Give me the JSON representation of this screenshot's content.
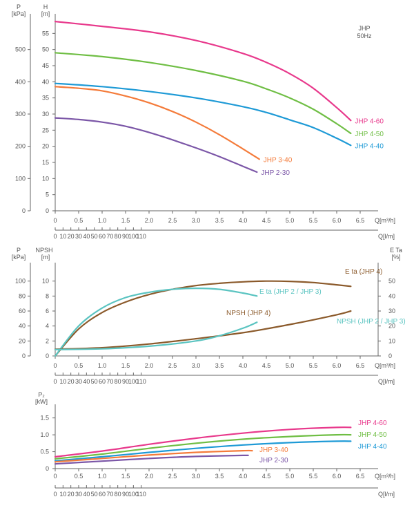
{
  "chart_data": [
    {
      "type": "line",
      "annotation": "JHP\n50Hz",
      "y_left": {
        "label": "P\n[kPa]",
        "ticks": [
          "0",
          "100",
          "200",
          "300",
          "400",
          "500"
        ],
        "range": [
          0,
          600
        ]
      },
      "y_right": {
        "label": "H\n[m]",
        "ticks": [
          "0",
          "5",
          "10",
          "15",
          "20",
          "25",
          "30",
          "35",
          "40",
          "45",
          "50",
          "55"
        ],
        "range": [
          0,
          60
        ]
      },
      "x_top": {
        "label": "Q[m³/h]",
        "ticks": [
          "0",
          "0.5",
          "1.0",
          "1.5",
          "2.0",
          "2.5",
          "3.0",
          "3.5",
          "4.0",
          "4.5",
          "5.0",
          "5.5",
          "6.0",
          "6.5"
        ],
        "range": [
          0,
          6.8
        ]
      },
      "x_bottom": {
        "label": "Q[l/m]",
        "ticks": [
          "0",
          "10",
          "20",
          "30",
          "40",
          "50",
          "60",
          "70",
          "80",
          "90",
          "100",
          "110"
        ]
      },
      "grid": false,
      "series": [
        {
          "name": "JHP 4-60",
          "color": "#e8398c",
          "x": [
            0,
            1,
            2,
            3,
            4,
            4.5,
            5,
            5.5,
            6,
            6.3
          ],
          "y": [
            58.7,
            57.2,
            55.5,
            52.8,
            48.8,
            46,
            42.5,
            38,
            32,
            28
          ]
        },
        {
          "name": "JHP 4-50",
          "color": "#6fbe44",
          "x": [
            0,
            1,
            2,
            3,
            4,
            4.5,
            5,
            5.5,
            6,
            6.3
          ],
          "y": [
            49,
            47.8,
            46,
            43.5,
            40.2,
            37.8,
            35,
            31.5,
            27,
            24
          ]
        },
        {
          "name": "JHP 4-40",
          "color": "#1e9ad6",
          "x": [
            0,
            1,
            2,
            3,
            4,
            4.5,
            5,
            5.5,
            6,
            6.3
          ],
          "y": [
            39.5,
            38.5,
            37,
            35,
            32.3,
            30.5,
            28.2,
            25.8,
            22.5,
            20.3
          ]
        },
        {
          "name": "JHP 3-40",
          "color": "#f47b3a",
          "x": [
            0,
            0.5,
            1,
            1.5,
            2,
            2.5,
            3,
            3.5,
            4,
            4.35
          ],
          "y": [
            38.5,
            38,
            37.2,
            35.6,
            33.5,
            30.8,
            27.5,
            23.6,
            19.2,
            16
          ]
        },
        {
          "name": "JHP 2-30",
          "color": "#7b56a7",
          "x": [
            0,
            0.5,
            1,
            1.5,
            2,
            2.5,
            3,
            3.5,
            4,
            4.3
          ],
          "y": [
            28.8,
            28.3,
            27.5,
            26.2,
            24.3,
            22,
            19.5,
            16.8,
            13.8,
            12
          ]
        }
      ]
    },
    {
      "type": "line",
      "y_left": {
        "label": "P  NPSH\n[kPa]  [m]",
        "ticks_kpa": [
          "0",
          "20",
          "40",
          "60",
          "80",
          "100"
        ],
        "ticks_m": [
          "0",
          "2",
          "4",
          "6",
          "8",
          "10"
        ],
        "range": [
          0,
          12
        ]
      },
      "y_right": {
        "label": "E Ta\n[%]",
        "ticks": [
          "0",
          "10",
          "20",
          "30",
          "40",
          "50"
        ],
        "range": [
          0,
          60
        ]
      },
      "x_top": {
        "label": "Q[m³/h]",
        "ticks": [
          "0",
          "0.5",
          "1.0",
          "1.5",
          "2.0",
          "2.5",
          "3.0",
          "3.5",
          "4.0",
          "4.5",
          "5.0",
          "5.5",
          "6.0",
          "6.5"
        ],
        "range": [
          0,
          6.8
        ]
      },
      "x_bottom": {
        "label": "Q[l/m]",
        "ticks": [
          "0",
          "10",
          "20",
          "30",
          "40",
          "50",
          "60",
          "70",
          "80",
          "90",
          "100",
          "110"
        ]
      },
      "grid": false,
      "series": [
        {
          "name": "E ta (JHP 4)",
          "axis": "right",
          "color": "#8b5a2b",
          "x": [
            0,
            0.5,
            1,
            1.5,
            2,
            2.5,
            3,
            3.5,
            4,
            4.5,
            5,
            5.5,
            6,
            6.3
          ],
          "y": [
            0,
            18,
            29,
            36,
            41,
            44.5,
            47,
            48.5,
            49.5,
            50,
            49.8,
            49,
            47.5,
            46.5
          ]
        },
        {
          "name": "E ta (JHP 2 / JHP 3)",
          "axis": "right",
          "color": "#5bc4c1",
          "x": [
            0,
            0.5,
            1,
            1.5,
            2,
            2.5,
            3,
            3.5,
            4,
            4.3
          ],
          "y": [
            0,
            20,
            32,
            39,
            42.5,
            44.5,
            45.2,
            44.5,
            42,
            40
          ]
        },
        {
          "name": "NPSH (JHP 4)",
          "axis": "left",
          "color": "#8b5a2b",
          "x": [
            0,
            1,
            2,
            3,
            4,
            5,
            6,
            6.3
          ],
          "y": [
            0.9,
            1.1,
            1.6,
            2.3,
            3.1,
            4.2,
            5.5,
            6.0
          ]
        },
        {
          "name": "NPSH (JHP 2 / JHP 3)",
          "axis": "left",
          "color": "#5bc4c1",
          "x": [
            0,
            1,
            2,
            3,
            3.5,
            4,
            4.3
          ],
          "y": [
            0.85,
            0.95,
            1.3,
            2.0,
            2.7,
            3.7,
            4.5
          ]
        }
      ]
    },
    {
      "type": "line",
      "y_left": {
        "label": "P₂\n[kW]",
        "ticks": [
          "0",
          "0.5",
          "1.0",
          "1.5"
        ],
        "range": [
          0,
          1.8
        ]
      },
      "x_top": {
        "label": "Q[m³/h]",
        "ticks": [
          "0",
          "0.5",
          "1.0",
          "1.5",
          "2.0",
          "2.5",
          "3.0",
          "3.5",
          "4.0",
          "4.5",
          "5.0",
          "5.5",
          "6.0",
          "6.5"
        ],
        "range": [
          0,
          6.8
        ]
      },
      "x_bottom": {
        "label": "Q[l/m]",
        "ticks": [
          "0",
          "10",
          "20",
          "30",
          "40",
          "50",
          "60",
          "70",
          "80",
          "90",
          "100",
          "110"
        ]
      },
      "grid": false,
      "series": [
        {
          "name": "JHP 4-60",
          "color": "#e8398c",
          "x": [
            0,
            1,
            2,
            3,
            4,
            5,
            6,
            6.3
          ],
          "y": [
            0.35,
            0.52,
            0.72,
            0.9,
            1.05,
            1.16,
            1.22,
            1.22
          ]
        },
        {
          "name": "JHP 4-50",
          "color": "#6fbe44",
          "x": [
            0,
            1,
            2,
            3,
            4,
            5,
            6,
            6.3
          ],
          "y": [
            0.29,
            0.43,
            0.6,
            0.75,
            0.87,
            0.95,
            1.0,
            1.0
          ]
        },
        {
          "name": "JHP 4-40",
          "color": "#1e9ad6",
          "x": [
            0,
            1,
            2,
            3,
            4,
            5,
            6,
            6.3
          ],
          "y": [
            0.23,
            0.35,
            0.48,
            0.6,
            0.7,
            0.77,
            0.81,
            0.81
          ]
        },
        {
          "name": "JHP 3-40",
          "color": "#f47b3a",
          "x": [
            0,
            1,
            2,
            3,
            4,
            4.2
          ],
          "y": [
            0.2,
            0.3,
            0.4,
            0.48,
            0.53,
            0.53
          ]
        },
        {
          "name": "JHP 2-30",
          "color": "#7b56a7",
          "x": [
            0,
            1,
            2,
            3,
            4,
            4.1
          ],
          "y": [
            0.14,
            0.22,
            0.3,
            0.36,
            0.39,
            0.39
          ]
        }
      ]
    }
  ]
}
